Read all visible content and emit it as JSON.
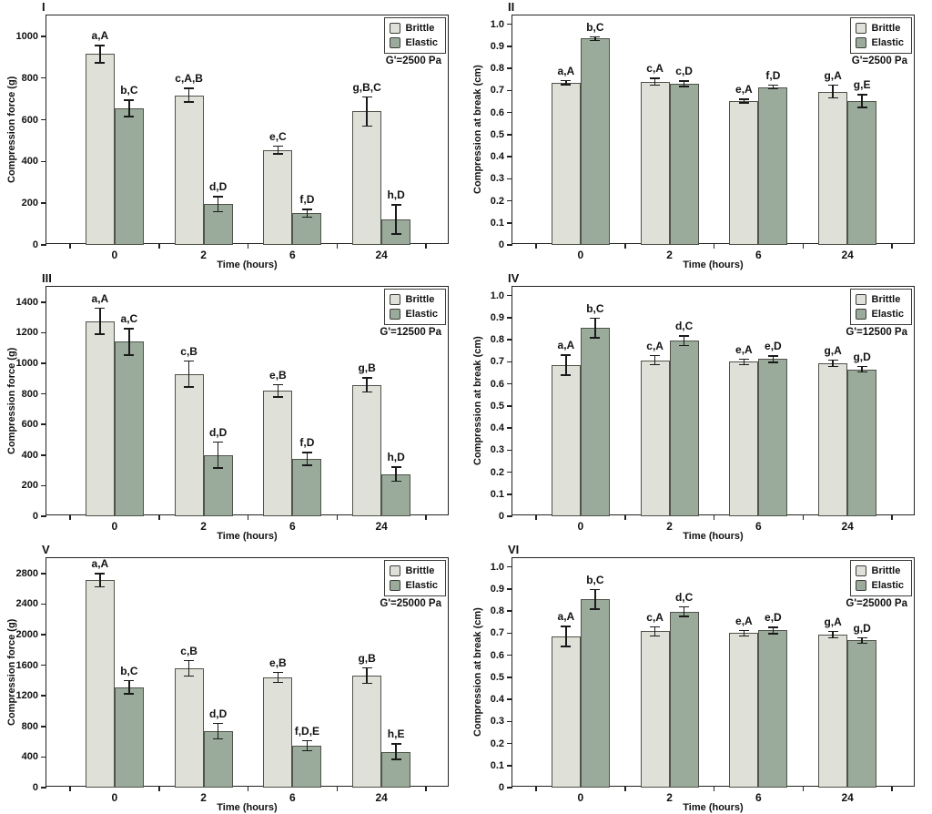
{
  "colors": {
    "brittle_fill": "#dfe0d8",
    "elastic_fill": "#9aab9c",
    "bar_border": "#4f5349",
    "axis": "#22231f"
  },
  "chart_data": [
    {
      "type": "bar",
      "panel_label": "I",
      "xlabel": "Time (hours)",
      "ylabel": "Compression force (g)",
      "gprime_label": "G'=2500 Pa",
      "legend_position": "top-right",
      "grid": false,
      "ylim": [
        0,
        1100
      ],
      "yticks": [
        0,
        200,
        400,
        600,
        800,
        1000
      ],
      "ytick_labels": [
        "0",
        "200",
        "400",
        "600",
        "800",
        "1000"
      ],
      "categories": [
        "0",
        "2",
        "6",
        "24"
      ],
      "series": [
        {
          "name": "Brittle",
          "values": [
            915,
            718,
            455,
            640
          ],
          "errors": [
            45,
            37,
            22,
            73
          ],
          "labels": [
            "a,A",
            "c,A,B",
            "e,C",
            "g,B,C"
          ]
        },
        {
          "name": "Elastic",
          "values": [
            655,
            195,
            152,
            122
          ],
          "errors": [
            42,
            40,
            22,
            73
          ],
          "labels": [
            "b,C",
            "d,D",
            "f,D",
            "h,D"
          ]
        }
      ]
    },
    {
      "type": "bar",
      "panel_label": "II",
      "xlabel": "Time (hours)",
      "ylabel": "Compression at break (cm)",
      "gprime_label": "G'=2500 Pa",
      "legend_position": "top-right",
      "grid": false,
      "ylim": [
        0,
        1.04
      ],
      "yticks": [
        0,
        0.1,
        0.2,
        0.3,
        0.4,
        0.5,
        0.6,
        0.7,
        0.8,
        0.9,
        1.0
      ],
      "ytick_labels": [
        "0",
        "0.1",
        "0.2",
        "0.3",
        "0.4",
        "0.5",
        "0.6",
        "0.7",
        "0.8",
        "0.9",
        "1.0"
      ],
      "categories": [
        "0",
        "2",
        "6",
        "24"
      ],
      "series": [
        {
          "name": "Brittle",
          "values": [
            0.735,
            0.74,
            0.652,
            0.695
          ],
          "errors": [
            0.012,
            0.018,
            0.012,
            0.032
          ],
          "labels": [
            "a,A",
            "c,A",
            "e,A",
            "g,A"
          ]
        },
        {
          "name": "Elastic",
          "values": [
            0.935,
            0.73,
            0.716,
            0.653
          ],
          "errors": [
            0.012,
            0.015,
            0.012,
            0.032
          ],
          "labels": [
            "b,C",
            "c,D",
            "f,D",
            "g,E"
          ]
        }
      ]
    },
    {
      "type": "bar",
      "panel_label": "III",
      "xlabel": "Time (hours)",
      "ylabel": "Compression force (g)",
      "gprime_label": "G'=12500 Pa",
      "legend_position": "top-right",
      "grid": false,
      "ylim": [
        0,
        1500
      ],
      "yticks": [
        0,
        200,
        400,
        600,
        800,
        1000,
        1200,
        1400
      ],
      "ytick_labels": [
        "0",
        "200",
        "400",
        "600",
        "800",
        "1000",
        "1200",
        "1400"
      ],
      "categories": [
        "0",
        "2",
        "6",
        "24"
      ],
      "series": [
        {
          "name": "Brittle",
          "values": [
            1275,
            930,
            820,
            858
          ],
          "errors": [
            90,
            90,
            45,
            50
          ],
          "labels": [
            "a,A",
            "c,B",
            "e,B",
            "g,B"
          ]
        },
        {
          "name": "Elastic",
          "values": [
            1140,
            400,
            375,
            275
          ],
          "errors": [
            90,
            90,
            45,
            50
          ],
          "labels": [
            "a,C",
            "d,D",
            "f,D",
            "h,D"
          ]
        }
      ]
    },
    {
      "type": "bar",
      "panel_label": "IV",
      "xlabel": "Time (hours)",
      "ylabel": "Compression at break (cm)",
      "gprime_label": "G'=12500 Pa",
      "legend_position": "top-right",
      "grid": false,
      "ylim": [
        0,
        1.04
      ],
      "yticks": [
        0,
        0.1,
        0.2,
        0.3,
        0.4,
        0.5,
        0.6,
        0.7,
        0.8,
        0.9,
        1.0
      ],
      "ytick_labels": [
        "0",
        "0.1",
        "0.2",
        "0.3",
        "0.4",
        "0.5",
        "0.6",
        "0.7",
        "0.8",
        "0.9",
        "1.0"
      ],
      "categories": [
        "0",
        "2",
        "6",
        "24"
      ],
      "series": [
        {
          "name": "Brittle",
          "values": [
            0.685,
            0.707,
            0.7,
            0.693
          ],
          "errors": [
            0.048,
            0.024,
            0.015,
            0.018
          ],
          "labels": [
            "a,A",
            "c,A",
            "e,A",
            "g,A"
          ]
        },
        {
          "name": "Elastic",
          "values": [
            0.853,
            0.796,
            0.712,
            0.666
          ],
          "errors": [
            0.048,
            0.025,
            0.018,
            0.015
          ],
          "labels": [
            "b,C",
            "d,C",
            "e,D",
            "g,D"
          ]
        }
      ]
    },
    {
      "type": "bar",
      "panel_label": "V",
      "xlabel": "Time (hours)",
      "ylabel": "Compression force (g)",
      "gprime_label": "G'=25000 Pa",
      "legend_position": "top-right",
      "grid": false,
      "ylim": [
        0,
        3000
      ],
      "yticks": [
        0,
        400,
        800,
        1200,
        1600,
        2000,
        2400,
        2800
      ],
      "ytick_labels": [
        "0",
        "400",
        "800",
        "1200",
        "1600",
        "2000",
        "2400",
        "2800"
      ],
      "categories": [
        "0",
        "2",
        "6",
        "24"
      ],
      "series": [
        {
          "name": "Brittle",
          "values": [
            2710,
            1560,
            1440,
            1465
          ],
          "errors": [
            95,
            110,
            75,
            110
          ],
          "labels": [
            "a,A",
            "c,B",
            "e,B",
            "g,B"
          ]
        },
        {
          "name": "Elastic",
          "values": [
            1310,
            740,
            550,
            470
          ],
          "errors": [
            95,
            110,
            75,
            110
          ],
          "labels": [
            "b,C",
            "d,D",
            "f,D,E",
            "h,E"
          ]
        }
      ]
    },
    {
      "type": "bar",
      "panel_label": "VI",
      "xlabel": "Time (hours)",
      "ylabel": "Compression at break (cm)",
      "gprime_label": "G'=25000 Pa",
      "legend_position": "top-right",
      "grid": false,
      "ylim": [
        0,
        1.04
      ],
      "yticks": [
        0,
        0.1,
        0.2,
        0.3,
        0.4,
        0.5,
        0.6,
        0.7,
        0.8,
        0.9,
        1.0
      ],
      "ytick_labels": [
        "0",
        "0.1",
        "0.2",
        "0.3",
        "0.4",
        "0.5",
        "0.6",
        "0.7",
        "0.8",
        "0.9",
        "1.0"
      ],
      "categories": [
        "0",
        "2",
        "6",
        "24"
      ],
      "series": [
        {
          "name": "Brittle",
          "values": [
            0.685,
            0.708,
            0.7,
            0.693
          ],
          "errors": [
            0.048,
            0.024,
            0.015,
            0.018
          ],
          "labels": [
            "a,A",
            "c,A",
            "e,A",
            "g,A"
          ]
        },
        {
          "name": "Elastic",
          "values": [
            0.853,
            0.797,
            0.712,
            0.667
          ],
          "errors": [
            0.047,
            0.025,
            0.018,
            0.015
          ],
          "labels": [
            "b,C",
            "d,C",
            "e,D",
            "g,D"
          ]
        }
      ]
    }
  ]
}
